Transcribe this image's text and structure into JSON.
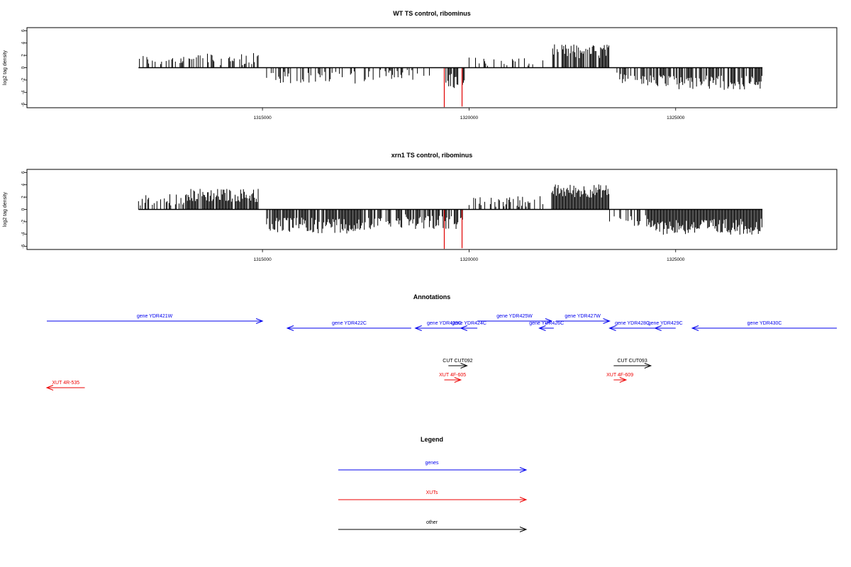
{
  "chart_data": [
    {
      "type": "bar",
      "title": "WT TS control, ribominus",
      "ylabel": "log2 tag density",
      "ylim": [
        -6.5,
        6.5
      ],
      "yticks": [
        6,
        4,
        2,
        0,
        -2,
        -4,
        -6
      ],
      "xlim": [
        1309300,
        1328900
      ],
      "xticks": [
        1315000,
        1320000,
        1325000
      ],
      "bar_color": "#000000",
      "highlight_color": "#e00000",
      "highlighted_bars": [
        {
          "x": 1319400,
          "value": -6.4
        },
        {
          "x": 1319830,
          "value": -6.3
        }
      ],
      "segments": [
        {
          "from": 1312000,
          "to": 1313200,
          "mean": 1.2,
          "spread": 0.9,
          "density": 0.35
        },
        {
          "from": 1313200,
          "to": 1314900,
          "mean": 1.4,
          "spread": 1.0,
          "density": 0.45
        },
        {
          "from": 1315100,
          "to": 1317500,
          "mean": -1.6,
          "spread": 1.0,
          "density": 0.45
        },
        {
          "from": 1317500,
          "to": 1319300,
          "mean": -1.2,
          "spread": 0.9,
          "density": 0.3
        },
        {
          "from": 1319350,
          "to": 1319900,
          "mean": -2.2,
          "spread": 1.2,
          "density": 0.5
        },
        {
          "from": 1320000,
          "to": 1321800,
          "mean": 0.9,
          "spread": 0.8,
          "density": 0.25
        },
        {
          "from": 1322000,
          "to": 1323400,
          "mean": 2.6,
          "spread": 1.2,
          "density": 0.8
        },
        {
          "from": 1323400,
          "to": 1324300,
          "mean": -1.8,
          "spread": 1.0,
          "density": 0.45
        },
        {
          "from": 1324300,
          "to": 1327100,
          "mean": -2.4,
          "spread": 1.2,
          "density": 0.75
        }
      ]
    },
    {
      "type": "bar",
      "title": "xrn1 TS control, ribominus",
      "ylabel": "log2 tag density",
      "ylim": [
        -6.5,
        6.5
      ],
      "yticks": [
        6,
        4,
        2,
        0,
        -2,
        -4,
        -6
      ],
      "xlim": [
        1309300,
        1328900
      ],
      "xticks": [
        1315000,
        1320000,
        1325000
      ],
      "bar_color": "#000000",
      "highlight_color": "#e00000",
      "highlighted_bars": [
        {
          "x": 1319400,
          "value": -6.4
        },
        {
          "x": 1319830,
          "value": -6.3
        }
      ],
      "segments": [
        {
          "from": 1312000,
          "to": 1313200,
          "mean": 1.6,
          "spread": 1.0,
          "density": 0.55
        },
        {
          "from": 1313200,
          "to": 1314900,
          "mean": 2.3,
          "spread": 1.1,
          "density": 0.9
        },
        {
          "from": 1315100,
          "to": 1317500,
          "mean": -2.6,
          "spread": 1.3,
          "density": 0.9
        },
        {
          "from": 1317500,
          "to": 1319300,
          "mean": -2.0,
          "spread": 1.2,
          "density": 0.7
        },
        {
          "from": 1319350,
          "to": 1319900,
          "mean": -2.2,
          "spread": 1.2,
          "density": 0.6
        },
        {
          "from": 1320000,
          "to": 1321800,
          "mean": 1.3,
          "spread": 0.9,
          "density": 0.45
        },
        {
          "from": 1322000,
          "to": 1323400,
          "mean": 3.0,
          "spread": 1.1,
          "density": 1.0
        },
        {
          "from": 1323400,
          "to": 1324300,
          "mean": -1.9,
          "spread": 1.0,
          "density": 0.5
        },
        {
          "from": 1324300,
          "to": 1327100,
          "mean": -2.8,
          "spread": 1.3,
          "density": 1.0
        }
      ]
    }
  ],
  "annotations": {
    "title": "Annotations",
    "features": [
      {
        "label": "gene YDR421W",
        "kind": "genes",
        "from": 1309400,
        "to": 1315000,
        "strand": "+",
        "row": 0
      },
      {
        "label": "gene YDR422C",
        "kind": "genes",
        "from": 1315600,
        "to": 1318600,
        "strand": "-",
        "row": 1
      },
      {
        "label": "gene YDR423C",
        "kind": "genes",
        "from": 1318700,
        "to": 1320100,
        "strand": "-",
        "row": 1
      },
      {
        "label": "gene YDR424C",
        "kind": "genes",
        "from": 1319800,
        "to": 1320200,
        "strand": "-",
        "row": 1
      },
      {
        "label": "gene YDR425W",
        "kind": "genes",
        "from": 1320200,
        "to": 1322000,
        "strand": "+",
        "row": 0
      },
      {
        "label": "gene YDR426C",
        "kind": "genes",
        "from": 1321700,
        "to": 1322050,
        "strand": "-",
        "row": 1
      },
      {
        "label": "gene YDR427W",
        "kind": "genes",
        "from": 1322100,
        "to": 1323400,
        "strand": "+",
        "row": 0
      },
      {
        "label": "gene YDR428C",
        "kind": "genes",
        "from": 1323400,
        "to": 1324500,
        "strand": "-",
        "row": 1
      },
      {
        "label": "gene YDR429C",
        "kind": "genes",
        "from": 1324500,
        "to": 1325000,
        "strand": "-",
        "row": 1
      },
      {
        "label": "gene YDR430C",
        "kind": "genes",
        "from": 1325400,
        "to": 1328900,
        "strand": "-",
        "row": 1
      },
      {
        "label": "CUT CUT092",
        "kind": "other",
        "from": 1319500,
        "to": 1319950,
        "strand": "+",
        "row": 3
      },
      {
        "label": "CUT CUT093",
        "kind": "other",
        "from": 1323500,
        "to": 1324400,
        "strand": "+",
        "row": 3
      },
      {
        "label": "XUT 4F-605",
        "kind": "xuts",
        "from": 1319400,
        "to": 1319800,
        "strand": "+",
        "row": 4
      },
      {
        "label": "XUT 4F-609",
        "kind": "xuts",
        "from": 1323500,
        "to": 1323800,
        "strand": "+",
        "row": 4
      },
      {
        "label": "XUT 4R-535",
        "kind": "xuts",
        "from": 1309300,
        "to": 1310700,
        "strand": "-",
        "row": 5
      }
    ]
  },
  "legend": {
    "title": "Legend",
    "items": [
      {
        "label": "genes",
        "color": "#0000ee"
      },
      {
        "label": "XUTs",
        "color": "#ee0000"
      },
      {
        "label": "other",
        "color": "#000000"
      }
    ]
  },
  "colors": {
    "genes": "#0000ee",
    "xuts": "#ee0000",
    "other": "#000000"
  }
}
